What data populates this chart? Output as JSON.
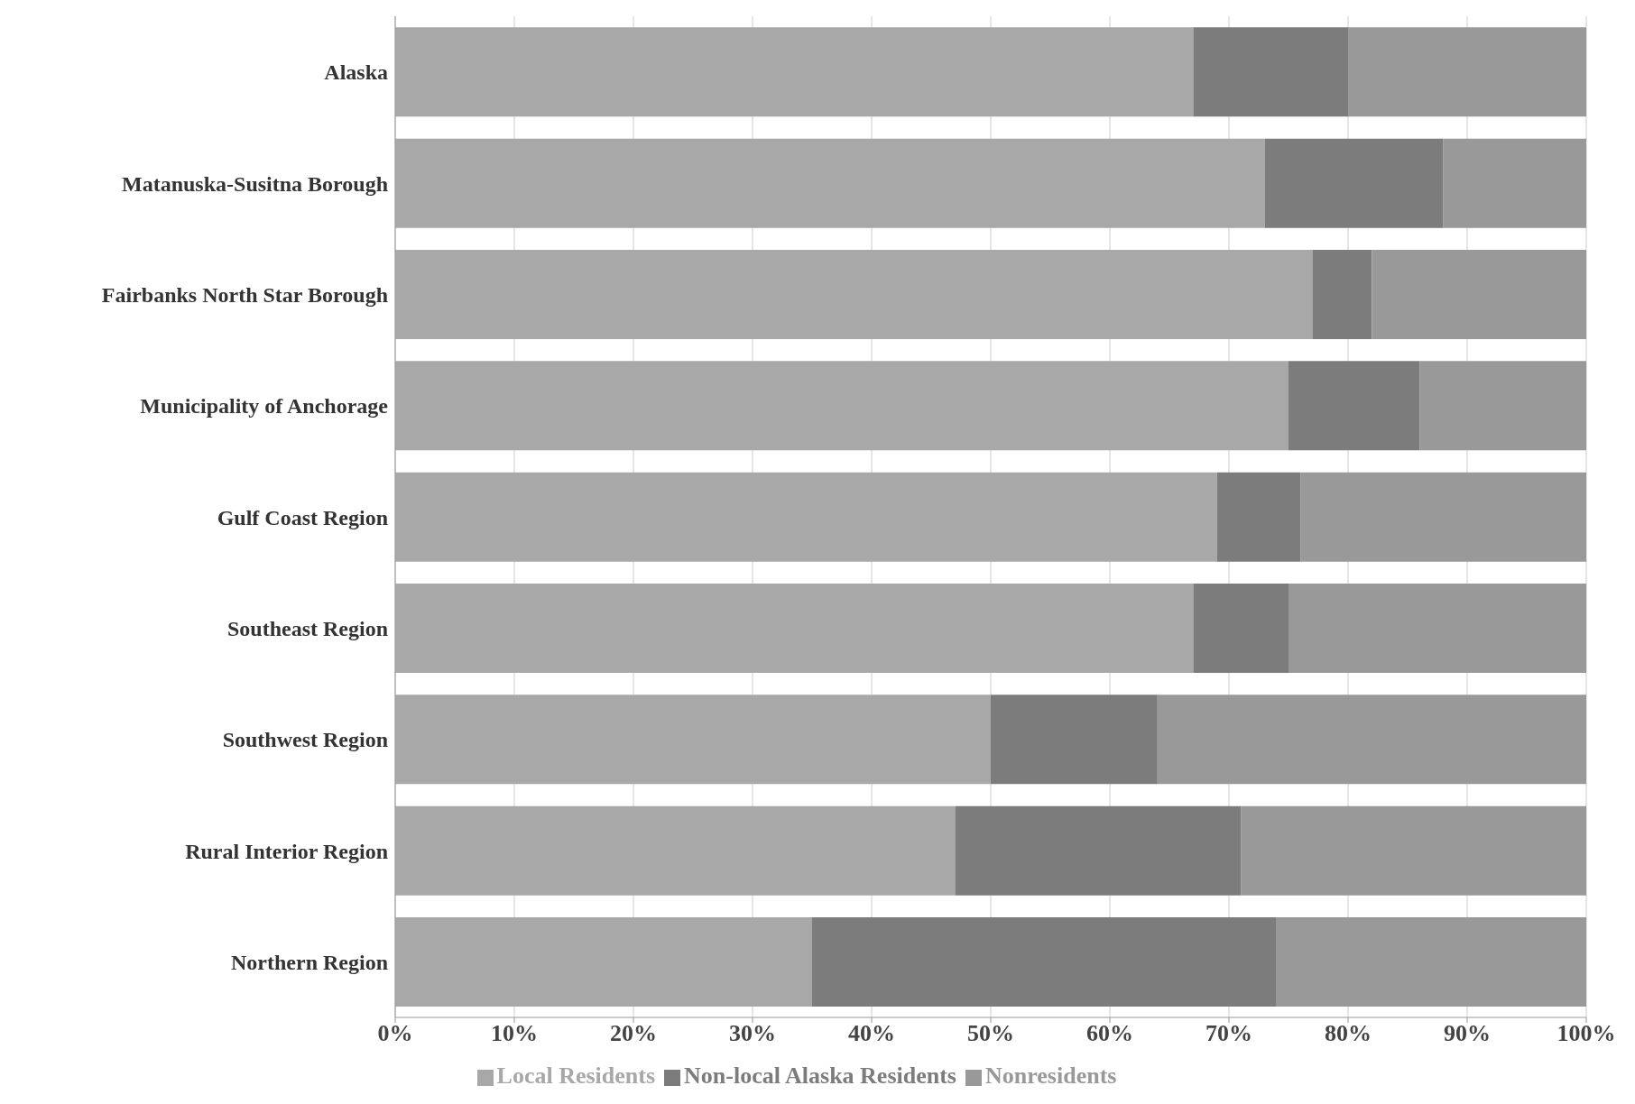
{
  "chart_data": {
    "type": "bar",
    "orientation": "horizontal",
    "stacked": true,
    "categories": [
      "Alaska",
      "Matanuska-Susitna Borough",
      "Fairbanks North Star Borough",
      "Municipality of Anchorage",
      "Gulf Coast Region",
      "Southeast Region",
      "Southwest Region",
      "Rural Interior Region",
      "Northern Region"
    ],
    "series": [
      {
        "name": "Local Residents",
        "color": "#a8a8a8",
        "values": [
          67,
          73,
          77,
          75,
          69,
          67,
          50,
          47,
          35
        ]
      },
      {
        "name": "Non-local Alaska Residents",
        "color": "#7c7c7c",
        "values": [
          13,
          15,
          5,
          11,
          7,
          8,
          14,
          24,
          39
        ]
      },
      {
        "name": "Nonresidents",
        "color": "#999999",
        "values": [
          20,
          12,
          18,
          14,
          24,
          25,
          36,
          29,
          26
        ]
      }
    ],
    "xlim": [
      0,
      100
    ],
    "xticks": [
      {
        "value": 0,
        "label": "0%"
      },
      {
        "value": 10,
        "label": "10%"
      },
      {
        "value": 20,
        "label": "20%"
      },
      {
        "value": 30,
        "label": "30%"
      },
      {
        "value": 40,
        "label": "40%"
      },
      {
        "value": 50,
        "label": "50%"
      },
      {
        "value": 60,
        "label": "60%"
      },
      {
        "value": 70,
        "label": "70%"
      },
      {
        "value": 80,
        "label": "80%"
      },
      {
        "value": 90,
        "label": "90%"
      },
      {
        "value": 100,
        "label": "100%"
      }
    ],
    "grid": "x",
    "legend": "bottom"
  }
}
